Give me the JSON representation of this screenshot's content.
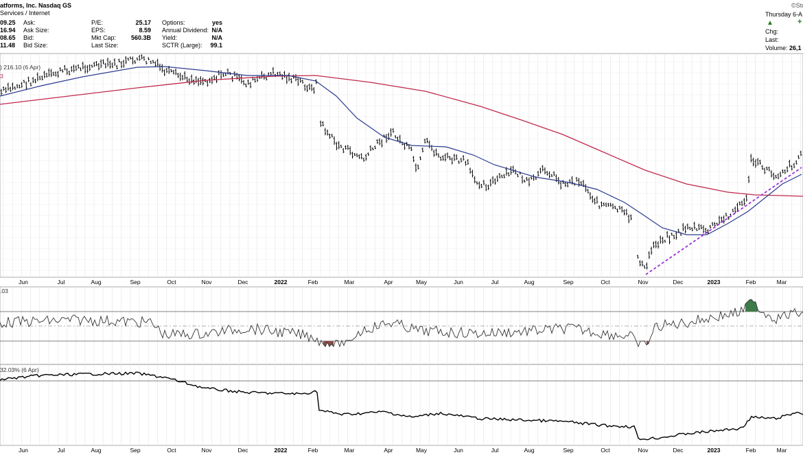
{
  "header": {
    "company": "atforms, Inc. Nasdaq GS",
    "sector": "Services / Internet",
    "logo": "©StockC",
    "date": "Thursday 6-A",
    "col1": [
      "09.25",
      "16.94",
      "08.65",
      "11.48"
    ],
    "col2": [
      {
        "label": "Ask:",
        "value": ""
      },
      {
        "label": "Ask Size:",
        "value": ""
      },
      {
        "label": "Bid:",
        "value": ""
      },
      {
        "label": "Bid Size:",
        "value": ""
      }
    ],
    "col3": [
      {
        "label": "P/E:",
        "value": "25.17"
      },
      {
        "label": "EPS:",
        "value": "8.59"
      },
      {
        "label": "Mkt Cap:",
        "value": "560.3B"
      },
      {
        "label": "Last Size:",
        "value": ""
      }
    ],
    "col4": [
      {
        "label": "Options:",
        "value": "yes"
      },
      {
        "label": "Annual Dividend:",
        "value": "N/A"
      },
      {
        "label": "Yield:",
        "value": "N/A"
      },
      {
        "label": "SCTR (Large):",
        "value": "99.1"
      }
    ],
    "right": [
      {
        "label": "",
        "value": "+"
      },
      {
        "label": "Chg:",
        "value": ""
      },
      {
        "label": "Last:",
        "value": ""
      },
      {
        "label": "Volume:",
        "value": "26,1"
      }
    ],
    "up_color": "#1e7a1e"
  },
  "chart_data": [
    {
      "type": "line",
      "panel": "price",
      "legend": ") 216.10 (6 Apr)",
      "legend2": "3",
      "x_months": [
        "Jun",
        "Jul",
        "Aug",
        "Sep",
        "Oct",
        "Nov",
        "Dec",
        "2022",
        "Feb",
        "Mar",
        "Apr",
        "May",
        "Jun",
        "Jul",
        "Aug",
        "Sep",
        "Oct",
        "Nov",
        "Dec",
        "2023",
        "Feb",
        "Mar"
      ],
      "series": [
        {
          "style": "ohlc-bars",
          "color": "#000000"
        },
        {
          "style": "moving-average-short",
          "color": "#2b3a8f"
        },
        {
          "style": "moving-average-long",
          "color": "#c0284b"
        },
        {
          "style": "trendline",
          "color": "#9b30d9"
        }
      ]
    },
    {
      "type": "line",
      "panel": "oscillator",
      "legend": ".03",
      "overbought_fill": "#3f7a4a",
      "oversold_fill": "#8a4a4a"
    },
    {
      "type": "line",
      "panel": "relative-strength",
      "legend": "32.03% (6 Apr)"
    }
  ]
}
